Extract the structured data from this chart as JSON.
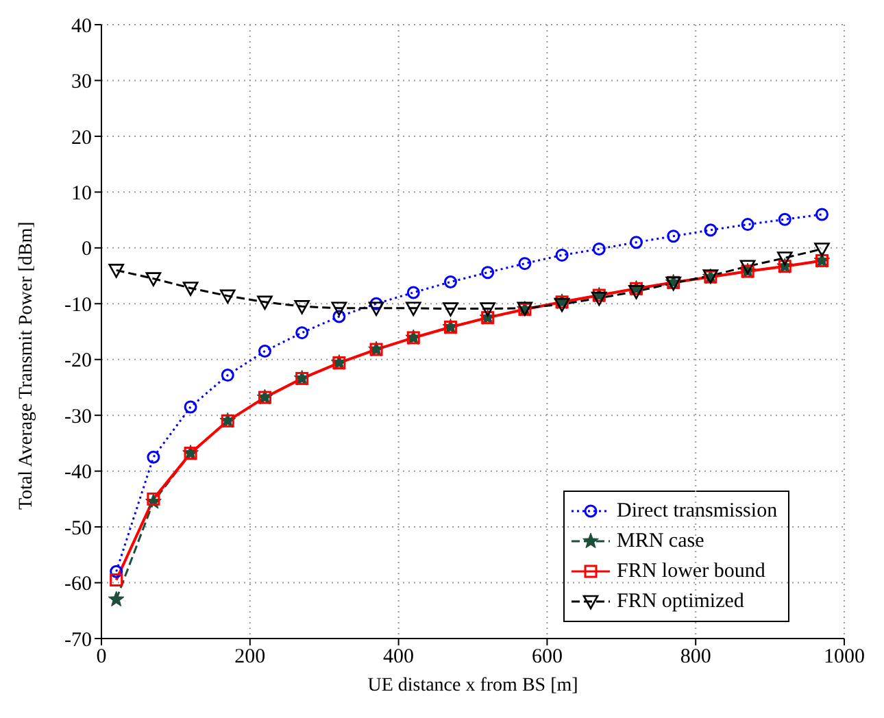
{
  "chart_data": {
    "type": "line",
    "xlabel": "UE distance x from BS [m]",
    "ylabel": "Total Average Transmit Power [dBm]",
    "x": [
      20,
      70,
      120,
      170,
      220,
      270,
      320,
      370,
      420,
      470,
      520,
      570,
      620,
      670,
      720,
      770,
      820,
      870,
      920,
      970
    ],
    "series": [
      {
        "name": "Direct transmission",
        "color": "#0000ff",
        "marker": "circle",
        "line_style": "dotted",
        "values": [
          -58,
          -37.5,
          -28.5,
          -22.8,
          -18.5,
          -15.2,
          -12.3,
          -10,
          -8,
          -6.1,
          -4.4,
          -2.8,
          -1.3,
          -0.2,
          1,
          2.1,
          3.2,
          4.2,
          5.1,
          6
        ]
      },
      {
        "name": "MRN case",
        "color": "#1e4d3a",
        "marker": "star",
        "line_style": "dashed",
        "values": [
          -63,
          -45.5,
          -36.8,
          -31,
          -26.8,
          -23.4,
          -20.6,
          -18.2,
          -16.1,
          -14.2,
          -12.5,
          -11,
          -9.7,
          -8.5,
          -7.3,
          -6.2,
          -5.2,
          -4.2,
          -3.3,
          -2.3
        ]
      },
      {
        "name": "FRN lower bound",
        "color": "#ff0000",
        "marker": "square",
        "line_style": "solid",
        "values": [
          -59.5,
          -45,
          -36.8,
          -31,
          -26.8,
          -23.4,
          -20.6,
          -18.2,
          -16.1,
          -14.2,
          -12.5,
          -11,
          -9.7,
          -8.5,
          -7.3,
          -6.2,
          -5.2,
          -4.2,
          -3.3,
          -2.3
        ]
      },
      {
        "name": "FRN optimized",
        "color": "#000000",
        "marker": "triangle",
        "line_style": "dashed",
        "values": [
          -4,
          -5.5,
          -7.2,
          -8.6,
          -9.7,
          -10.5,
          -10.8,
          -10.8,
          -10.8,
          -10.9,
          -10.9,
          -10.8,
          -10.1,
          -9,
          -7.8,
          -6.3,
          -5,
          -3.3,
          -1.8,
          -0.2
        ]
      }
    ],
    "xlim": [
      0,
      1000
    ],
    "xticks": [
      0,
      200,
      400,
      600,
      800,
      1000
    ],
    "ylim": [
      -70,
      40
    ],
    "yticks": [
      -70,
      -60,
      -50,
      -40,
      -30,
      -20,
      -10,
      0,
      10,
      20,
      30,
      40
    ],
    "grid": true,
    "legend": "bottom right"
  }
}
